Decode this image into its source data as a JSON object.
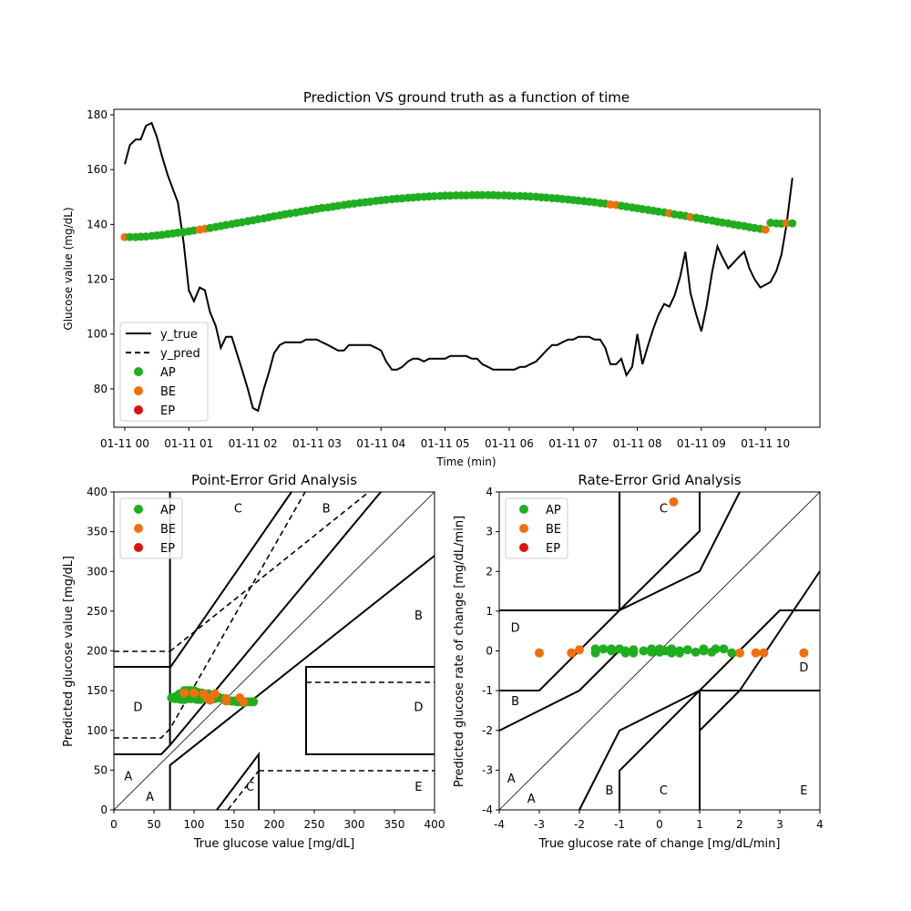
{
  "colors": {
    "AP": "#1fae1f",
    "BE": "#f07010",
    "EP": "#e01010",
    "line": "#000000"
  },
  "chart_data": [
    {
      "type": "line",
      "title": "Prediction VS ground truth as a function of time",
      "xlabel": "Time (min)",
      "ylabel": "Glucose value (mg/dL)",
      "xlim": [
        -0.17,
        10.85
      ],
      "ylim": [
        66,
        182
      ],
      "x_unit": "hours after 01-11 00:00",
      "xtick_labels": [
        "01-11 00",
        "01-11 01",
        "01-11 02",
        "01-11 03",
        "01-11 04",
        "01-11 05",
        "01-11 06",
        "01-11 07",
        "01-11 08",
        "01-11 09",
        "01-11 10"
      ],
      "xticks": [
        0,
        1,
        2,
        3,
        4,
        5,
        6,
        7,
        8,
        9,
        10
      ],
      "yticks": [
        80,
        100,
        120,
        140,
        160,
        180
      ],
      "legend": {
        "position": "lower-left",
        "entries": [
          "y_true",
          "y_pred",
          "AP",
          "BE",
          "EP"
        ]
      },
      "y_true": {
        "x": [
          0,
          0.08,
          0.17,
          0.25,
          0.33,
          0.42,
          0.5,
          0.58,
          0.67,
          0.75,
          0.83,
          0.92,
          1.0,
          1.08,
          1.17,
          1.25,
          1.33,
          1.42,
          1.5,
          1.58,
          1.67,
          1.75,
          1.83,
          1.92,
          2.0,
          2.08,
          2.17,
          2.25,
          2.33,
          2.42,
          2.5,
          2.58,
          2.67,
          2.75,
          2.83,
          2.92,
          3.0,
          3.08,
          3.17,
          3.25,
          3.33,
          3.42,
          3.5,
          3.58,
          3.67,
          3.75,
          3.83,
          3.92,
          4.0,
          4.08,
          4.17,
          4.25,
          4.33,
          4.42,
          4.5,
          4.58,
          4.67,
          4.75,
          4.83,
          4.92,
          5.0,
          5.08,
          5.17,
          5.25,
          5.33,
          5.42,
          5.5,
          5.58,
          5.67,
          5.75,
          5.83,
          5.92,
          6.0,
          6.08,
          6.17,
          6.25,
          6.33,
          6.42,
          6.5,
          6.58,
          6.67,
          6.75,
          6.83,
          6.92,
          7.0,
          7.08,
          7.17,
          7.25,
          7.33,
          7.42,
          7.5,
          7.58,
          7.67,
          7.75,
          7.83,
          7.92,
          8.0,
          8.08,
          8.17,
          8.25,
          8.33,
          8.42,
          8.5,
          8.58,
          8.67,
          8.75,
          8.83,
          8.92,
          9.0,
          9.08,
          9.17,
          9.25,
          9.33,
          9.42,
          9.5,
          9.58,
          9.67,
          9.75,
          9.83,
          9.92,
          10.0,
          10.08,
          10.17,
          10.25,
          10.33,
          10.42
        ],
        "y": [
          162,
          169,
          171,
          171,
          176,
          177,
          172,
          165,
          158,
          153,
          148,
          133,
          116,
          112,
          117,
          116,
          108,
          103,
          95,
          99,
          99,
          93,
          87,
          80,
          73,
          72,
          80,
          86,
          93,
          96,
          97,
          97,
          97,
          97,
          98,
          98,
          98,
          97,
          96,
          95,
          94,
          94,
          96,
          96,
          96,
          96,
          96,
          95,
          94,
          90,
          87,
          87,
          88,
          90,
          91,
          91,
          90,
          91,
          91,
          91,
          91,
          92,
          92,
          92,
          92,
          91,
          91,
          89,
          88,
          87,
          87,
          87,
          87,
          87,
          88,
          88,
          89,
          90,
          92,
          94,
          96,
          96,
          97,
          98,
          98,
          99,
          99,
          99,
          98,
          98,
          95,
          89,
          89,
          91,
          85,
          88,
          100,
          89,
          96,
          102,
          107,
          111,
          110,
          114,
          121,
          130,
          115,
          107,
          101,
          110,
          123,
          132,
          128,
          124,
          126,
          128,
          130,
          124,
          120,
          117,
          118,
          119,
          123,
          129,
          140,
          157
        ]
      },
      "y_pred": {
        "x": [
          0,
          0.08,
          0.17,
          0.25,
          0.33,
          0.42,
          0.5,
          0.58,
          0.67,
          0.75,
          0.83,
          0.92,
          1.0,
          1.08,
          1.17,
          1.25,
          1.33,
          1.42,
          1.5,
          1.58,
          1.67,
          1.75,
          1.83,
          1.92,
          2.0,
          2.08,
          2.17,
          2.25,
          2.33,
          2.42,
          2.5,
          2.58,
          2.67,
          2.75,
          2.83,
          2.92,
          3.0,
          3.08,
          3.17,
          3.25,
          3.33,
          3.42,
          3.5,
          3.58,
          3.67,
          3.75,
          3.83,
          3.92,
          4.0,
          4.08,
          4.17,
          4.25,
          4.33,
          4.42,
          4.5,
          4.58,
          4.67,
          4.75,
          4.83,
          4.92,
          5.0,
          5.08,
          5.17,
          5.25,
          5.33,
          5.42,
          5.5,
          5.58,
          5.67,
          5.75,
          5.83,
          5.92,
          6.0,
          6.08,
          6.17,
          6.25,
          6.33,
          6.42,
          6.5,
          6.58,
          6.67,
          6.75,
          6.83,
          6.92,
          7.0,
          7.08,
          7.17,
          7.25,
          7.33,
          7.42,
          7.5,
          7.58,
          7.67,
          7.75,
          7.83,
          7.92,
          8.0,
          8.08,
          8.17,
          8.25,
          8.33,
          8.42,
          8.5,
          8.58,
          8.67,
          8.75,
          8.83,
          8.92,
          9.0,
          9.08,
          9.17,
          9.25,
          9.33,
          9.42,
          9.5,
          9.58,
          9.67,
          9.75,
          9.83,
          9.92,
          10.0,
          10.08,
          10.17,
          10.25,
          10.33,
          10.42
        ],
        "y": [
          135.4,
          135.4,
          135.4,
          135.5,
          135.6,
          135.8,
          136.0,
          136.2,
          136.5,
          136.7,
          137.0,
          137.2,
          137.5,
          137.8,
          138.1,
          138.4,
          138.7,
          139.1,
          139.4,
          139.8,
          140.1,
          140.5,
          140.8,
          141.2,
          141.5,
          141.9,
          142.2,
          142.6,
          143.0,
          143.3,
          143.7,
          144.0,
          144.3,
          144.7,
          145.0,
          145.3,
          145.7,
          146.0,
          146.2,
          146.5,
          146.8,
          147.1,
          147.4,
          147.6,
          147.9,
          148.1,
          148.3,
          148.6,
          148.8,
          149.0,
          149.2,
          149.4,
          149.5,
          149.7,
          149.8,
          150.0,
          150.1,
          150.2,
          150.3,
          150.4,
          150.5,
          150.5,
          150.6,
          150.6,
          150.6,
          150.7,
          150.7,
          150.7,
          150.7,
          150.7,
          150.6,
          150.6,
          150.5,
          150.4,
          150.4,
          150.3,
          150.2,
          150.1,
          149.9,
          149.8,
          149.6,
          149.5,
          149.3,
          149.1,
          148.9,
          148.7,
          148.5,
          148.3,
          148.1,
          147.8,
          147.6,
          147.3,
          147.1,
          146.8,
          146.5,
          146.2,
          145.9,
          145.6,
          145.3,
          145.0,
          144.7,
          144.4,
          144.1,
          143.7,
          143.4,
          143.1,
          142.7,
          142.4,
          142.1,
          141.7,
          141.4,
          141.0,
          140.7,
          140.4,
          140.0,
          139.7,
          139.4,
          139.0,
          138.7,
          138.4,
          138.1,
          140.6,
          140.4,
          140.3,
          140.5,
          140.4
        ]
      },
      "be_indices": [
        0,
        14,
        15,
        91,
        92,
        102,
        106,
        120,
        124
      ]
    },
    {
      "type": "scatter",
      "title": "Point-Error Grid Analysis",
      "xlabel": "True glucose value [mg/dL]",
      "ylabel": "Predicted glucose value [mg/dL]",
      "xlim": [
        0,
        400
      ],
      "ylim": [
        0,
        400
      ],
      "xticks": [
        0,
        50,
        100,
        150,
        200,
        250,
        300,
        350,
        400
      ],
      "yticks": [
        0,
        50,
        100,
        150,
        200,
        250,
        300,
        350,
        400
      ],
      "legend": {
        "position": "upper-left",
        "entries": [
          "AP",
          "BE",
          "EP"
        ]
      },
      "zone_labels": [
        {
          "text": "C",
          "x": 155,
          "y": 380
        },
        {
          "text": "B",
          "x": 265,
          "y": 380
        },
        {
          "text": "B",
          "x": 380,
          "y": 245
        },
        {
          "text": "D",
          "x": 30,
          "y": 130
        },
        {
          "text": "D",
          "x": 380,
          "y": 130
        },
        {
          "text": "A",
          "x": 18,
          "y": 43
        },
        {
          "text": "A",
          "x": 45,
          "y": 17
        },
        {
          "text": "C",
          "x": 170,
          "y": 30
        },
        {
          "text": "E",
          "x": 380,
          "y": 30
        }
      ],
      "AP": [
        [
          72,
          141
        ],
        [
          76,
          140
        ],
        [
          80,
          140
        ],
        [
          84,
          139
        ],
        [
          88,
          139
        ],
        [
          88,
          150
        ],
        [
          92,
          150
        ],
        [
          96,
          150
        ],
        [
          100,
          150
        ],
        [
          104,
          148
        ],
        [
          92,
          140
        ],
        [
          96,
          140
        ],
        [
          100,
          140
        ],
        [
          104,
          139
        ],
        [
          108,
          139
        ],
        [
          112,
          141
        ],
        [
          116,
          140
        ],
        [
          120,
          143
        ],
        [
          124,
          143
        ],
        [
          128,
          143
        ],
        [
          132,
          141
        ],
        [
          136,
          140
        ],
        [
          140,
          139
        ],
        [
          146,
          137
        ],
        [
          150,
          137
        ],
        [
          154,
          136
        ],
        [
          158,
          136
        ],
        [
          162,
          135
        ],
        [
          166,
          136
        ],
        [
          170,
          136
        ],
        [
          174,
          136
        ],
        [
          78,
          143
        ],
        [
          82,
          146
        ],
        [
          86,
          145
        ],
        [
          90,
          143
        ],
        [
          94,
          145
        ],
        [
          98,
          143
        ],
        [
          102,
          141
        ],
        [
          106,
          145
        ],
        [
          110,
          147
        ],
        [
          114,
          144
        ],
        [
          118,
          146
        ],
        [
          126,
          140
        ]
      ],
      "BE": [
        [
          88,
          147
        ],
        [
          100,
          147
        ],
        [
          112,
          146
        ],
        [
          116,
          141
        ],
        [
          120,
          138
        ],
        [
          126,
          146
        ],
        [
          140,
          140
        ],
        [
          140,
          137
        ],
        [
          157,
          141
        ],
        [
          162,
          136
        ]
      ],
      "EP": []
    },
    {
      "type": "scatter",
      "title": "Rate-Error Grid Analysis",
      "xlabel": "True glucose rate of change [mg/dL/min]",
      "ylabel": "Predicted glucose rate of change [mg/dL/min]",
      "xlim": [
        -4,
        4
      ],
      "ylim": [
        -4,
        4
      ],
      "xticks": [
        -4,
        -3,
        -2,
        -1,
        0,
        1,
        2,
        3,
        4
      ],
      "yticks": [
        -4,
        -3,
        -2,
        -1,
        0,
        1,
        2,
        3,
        4
      ],
      "legend": {
        "position": "upper-left",
        "entries": [
          "AP",
          "BE",
          "EP"
        ]
      },
      "zone_labels": [
        {
          "text": "C",
          "x": 0.1,
          "y": 3.6
        },
        {
          "text": "D",
          "x": -3.6,
          "y": 0.6
        },
        {
          "text": "D",
          "x": 3.6,
          "y": -0.4
        },
        {
          "text": "B",
          "x": -3.6,
          "y": -1.25
        },
        {
          "text": "A",
          "x": -3.7,
          "y": -3.2
        },
        {
          "text": "A",
          "x": -3.2,
          "y": -3.7
        },
        {
          "text": "B",
          "x": -1.25,
          "y": -3.5
        },
        {
          "text": "C",
          "x": 0.1,
          "y": -3.5
        },
        {
          "text": "E",
          "x": 3.6,
          "y": -3.5
        }
      ],
      "AP": [
        [
          -1.6,
          0.05
        ],
        [
          -1.6,
          -0.05
        ],
        [
          -1.4,
          0.05
        ],
        [
          -1.2,
          0.0
        ],
        [
          -1.2,
          0.05
        ],
        [
          -1.0,
          0.05
        ],
        [
          -0.85,
          -0.05
        ],
        [
          -0.85,
          0.0
        ],
        [
          -0.65,
          -0.05
        ],
        [
          -0.65,
          0.03
        ],
        [
          -0.4,
          0.0
        ],
        [
          -0.2,
          0.05
        ],
        [
          -0.2,
          -0.03
        ],
        [
          0.0,
          0.05
        ],
        [
          0.0,
          -0.03
        ],
        [
          0.15,
          0.0
        ],
        [
          0.3,
          0.05
        ],
        [
          0.3,
          -0.05
        ],
        [
          0.5,
          0.0
        ],
        [
          0.5,
          -0.05
        ],
        [
          0.7,
          0.03
        ],
        [
          0.9,
          -0.03
        ],
        [
          1.1,
          0.0
        ],
        [
          1.1,
          0.05
        ],
        [
          1.3,
          -0.03
        ],
        [
          1.4,
          0.05
        ],
        [
          1.6,
          0.05
        ],
        [
          1.8,
          -0.05
        ]
      ],
      "BE": [
        [
          -3.0,
          -0.05
        ],
        [
          -2.2,
          -0.05
        ],
        [
          -2.0,
          0.03
        ],
        [
          0.35,
          3.75
        ],
        [
          2.0,
          -0.05
        ],
        [
          2.4,
          -0.05
        ],
        [
          2.6,
          -0.05
        ],
        [
          3.6,
          -0.05
        ]
      ],
      "EP": []
    }
  ]
}
